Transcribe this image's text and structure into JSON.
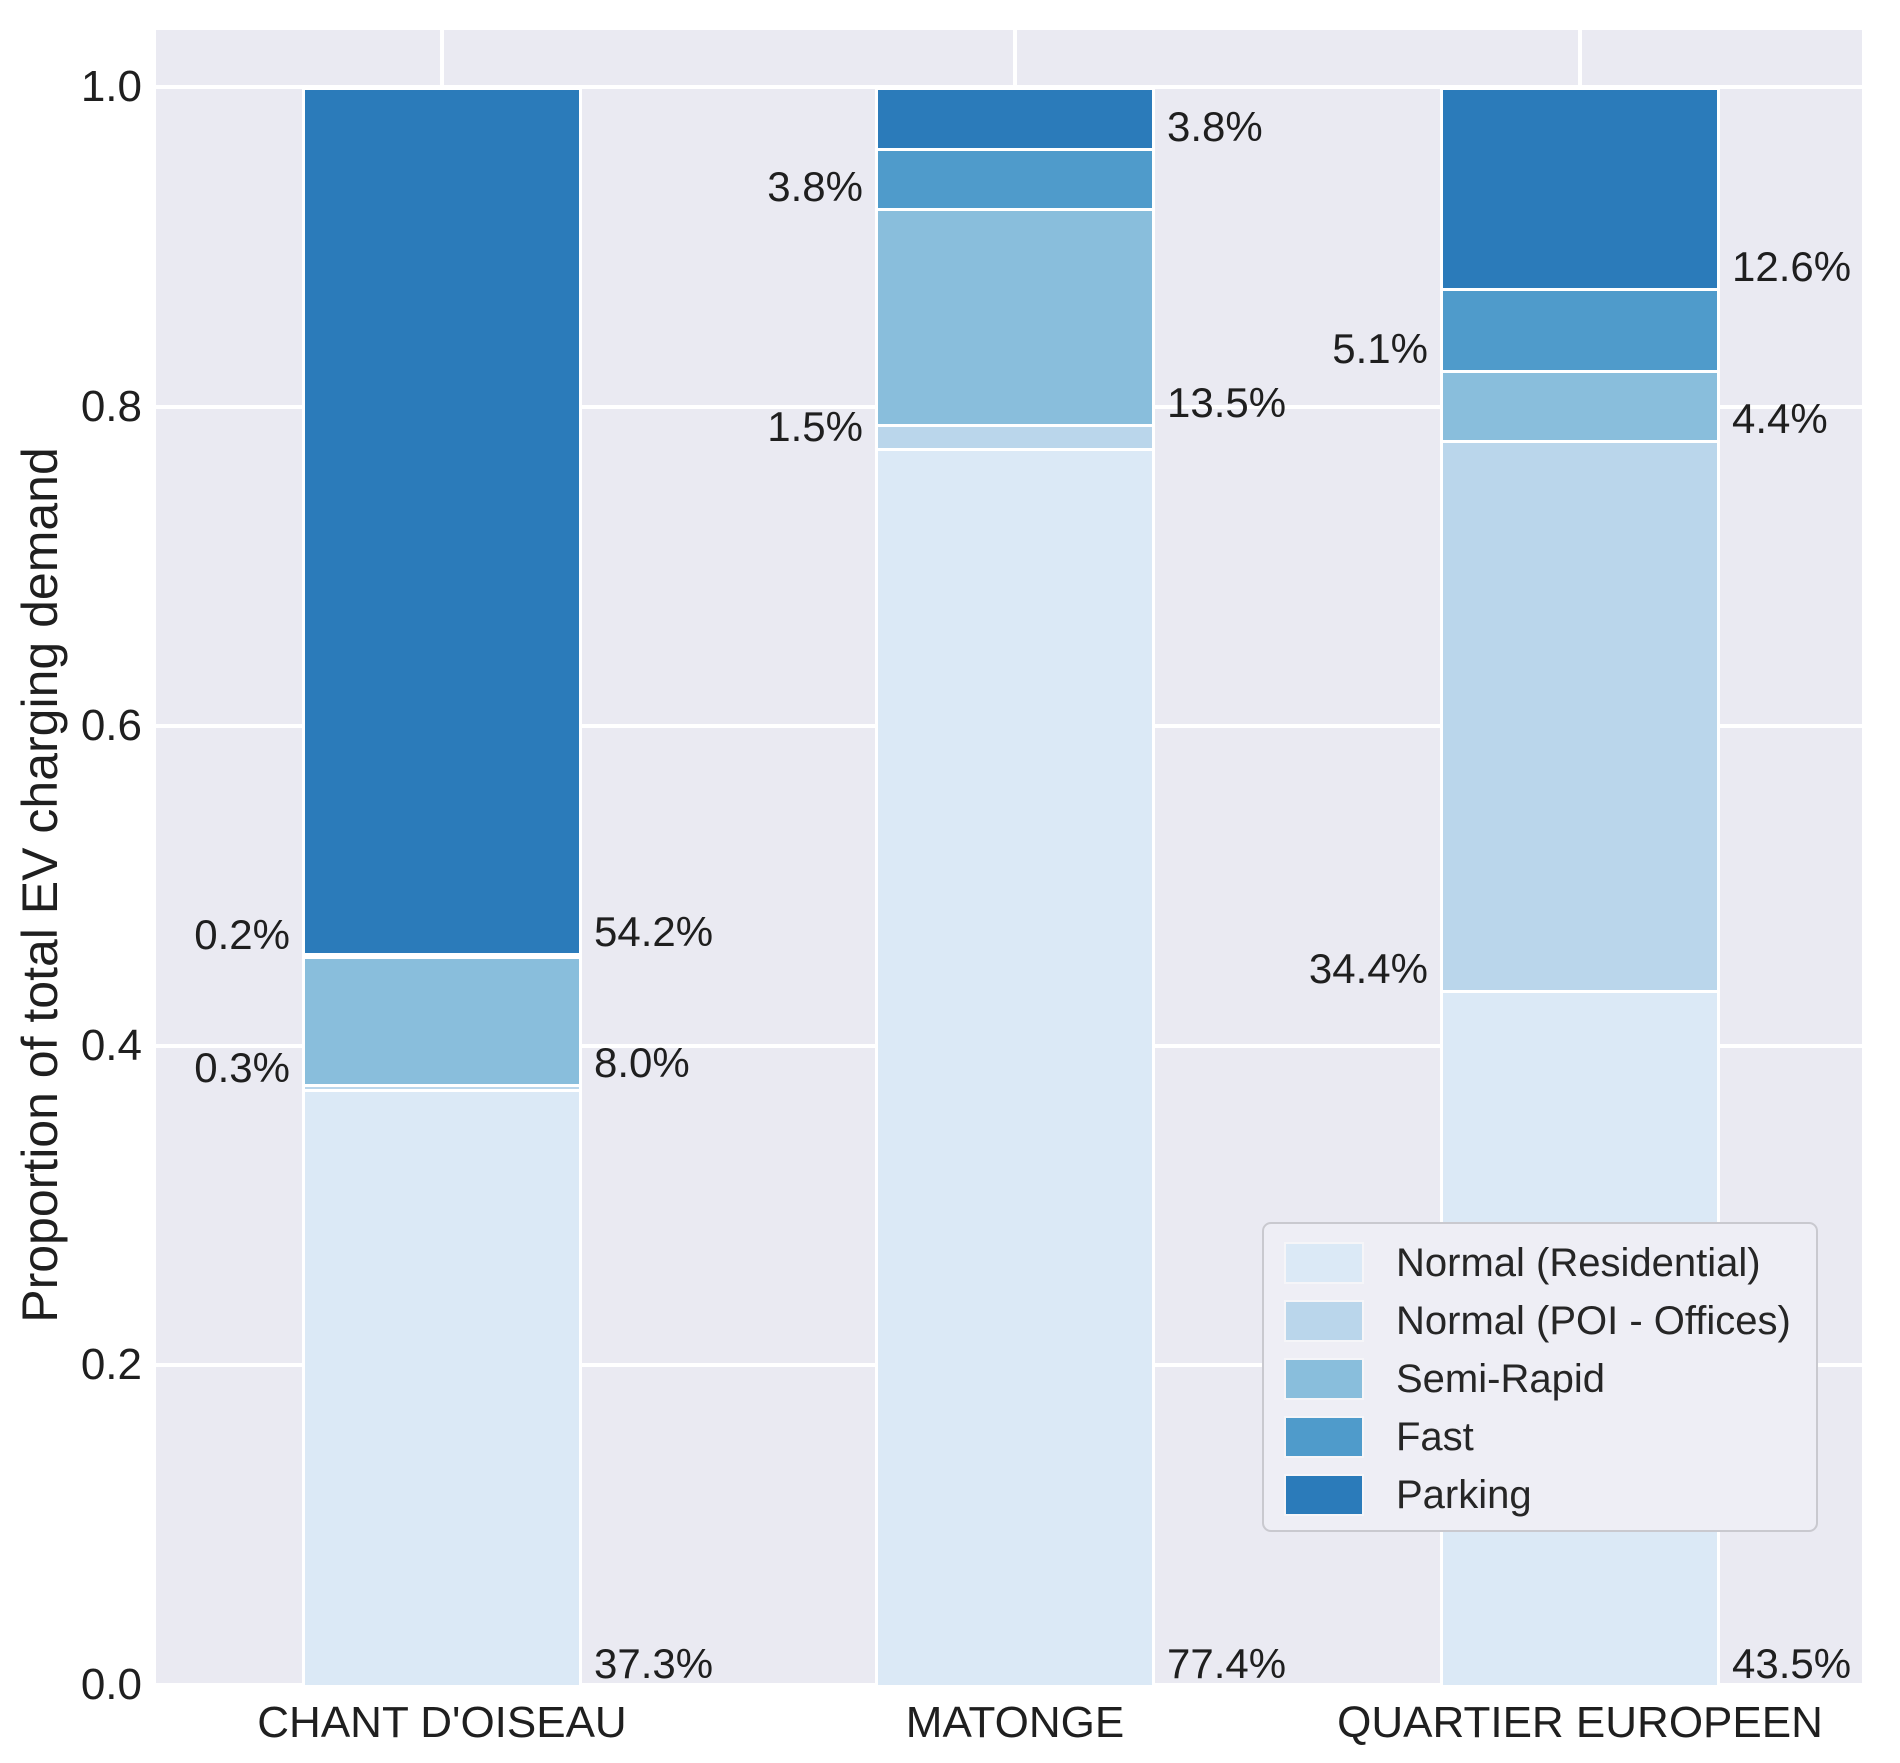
{
  "chart_data": {
    "type": "bar",
    "stacked": true,
    "title": "",
    "ylabel": "Proportion of total EV charging demand",
    "xlabel": "",
    "categories": [
      "CHANT D'OISEAU",
      "MATONGE",
      "QUARTIER EUROPEEN"
    ],
    "yticks": [
      "0.0",
      "0.2",
      "0.4",
      "0.6",
      "0.8",
      "1.0"
    ],
    "ylim": [
      0,
      1
    ],
    "grid": true,
    "plot_background": "#eaeaf2",
    "grid_color": "#ffffff",
    "legend_position": "lower right",
    "series": [
      {
        "name": "Normal (Residential)",
        "color": "#dbe9f6",
        "values": [
          0.373,
          0.774,
          0.435
        ],
        "labels": [
          "37.3%",
          "77.4%",
          "43.5%"
        ],
        "label_side": "right"
      },
      {
        "name": "Normal (POI - Offices)",
        "color": "#bad6eb",
        "values": [
          0.003,
          0.015,
          0.344
        ],
        "labels": [
          "0.3%",
          "1.5%",
          "34.4%"
        ],
        "label_side": "left"
      },
      {
        "name": "Semi-Rapid",
        "color": "#89bedc",
        "values": [
          0.08,
          0.135,
          0.044
        ],
        "labels": [
          "8.0%",
          "13.5%",
          "4.4%"
        ],
        "label_side": "right"
      },
      {
        "name": "Fast",
        "color": "#4f9bcb",
        "values": [
          0.002,
          0.038,
          0.051
        ],
        "labels": [
          "0.2%",
          "3.8%",
          "5.1%"
        ],
        "label_side": "left"
      },
      {
        "name": "Parking",
        "color": "#2b7bba",
        "values": [
          0.542,
          0.038,
          0.126
        ],
        "labels": [
          "54.2%",
          "3.8%",
          "12.6%"
        ],
        "label_side": "right"
      }
    ]
  }
}
